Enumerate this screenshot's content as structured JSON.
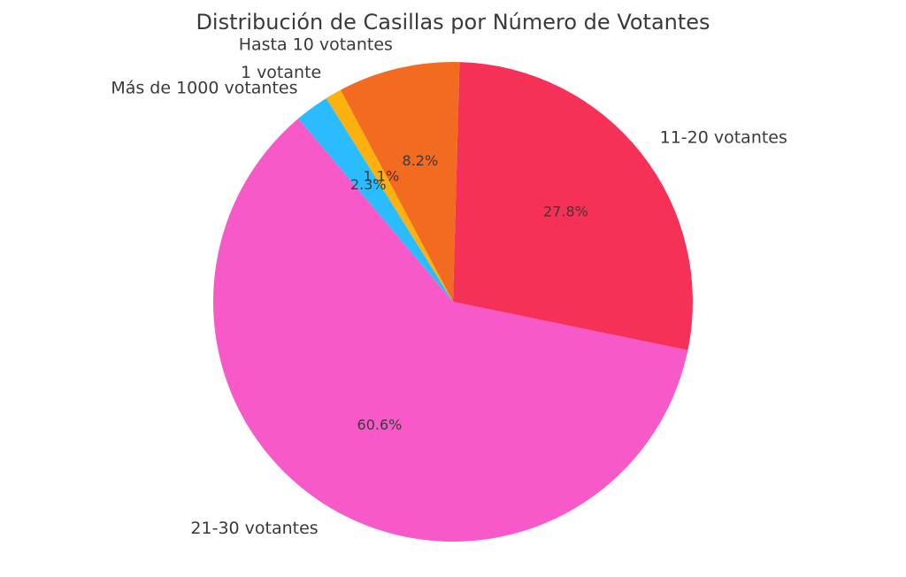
{
  "chart_data": {
    "type": "pie",
    "title": "Distribución de Casillas por Número de Votantes",
    "categories": [
      "21-30 votantes",
      "11-20 votantes",
      "Hasta 10 votantes",
      "1 votante",
      "Más de 1000 votantes"
    ],
    "values": [
      60.6,
      27.8,
      8.2,
      1.1,
      2.3
    ],
    "value_labels": [
      "60.6%",
      "27.8%",
      "8.2%",
      "1.1%",
      "2.3%"
    ],
    "colors": [
      "#f75ac8",
      "#f63158",
      "#f26b21",
      "#fdb10f",
      "#2abcff"
    ],
    "start_angle_deg": 130.2,
    "direction": "counterclockwise"
  }
}
